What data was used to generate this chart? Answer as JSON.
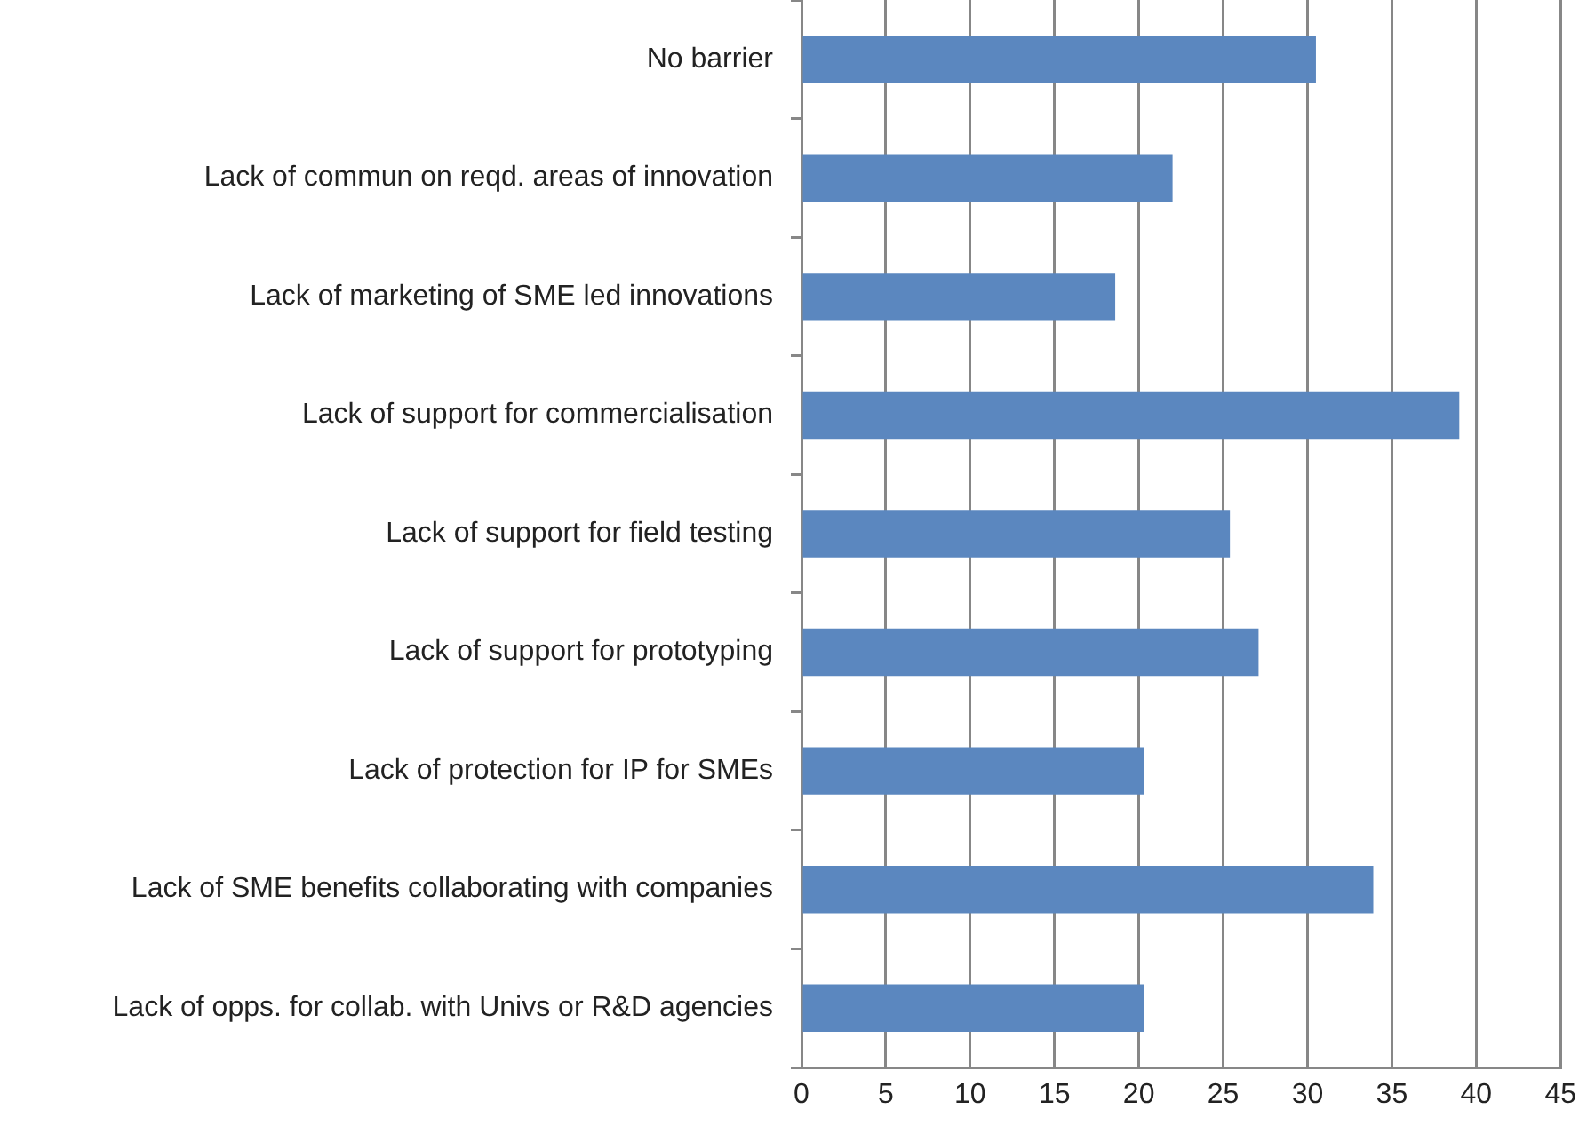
{
  "chart_data": {
    "type": "bar",
    "orientation": "horizontal",
    "categories": [
      "No barrier",
      "Lack of commun on reqd. areas of innovation",
      "Lack of marketing of SME led innovations",
      "Lack of support for commercialisation",
      "Lack of support for field testing",
      "Lack of support for prototyping",
      "Lack of protection for IP for SMEs",
      "Lack of SME benefits collaborating with companies",
      "Lack of opps. for collab. with Univs or R&D agencies"
    ],
    "values": [
      30.5,
      22.0,
      18.6,
      39.0,
      25.4,
      27.1,
      20.3,
      33.9,
      20.3
    ],
    "color": "#5b87bf",
    "xlim": [
      0,
      45
    ],
    "xticks": [
      0,
      5,
      10,
      15,
      20,
      25,
      30,
      35,
      40,
      45
    ],
    "grid": "x"
  }
}
